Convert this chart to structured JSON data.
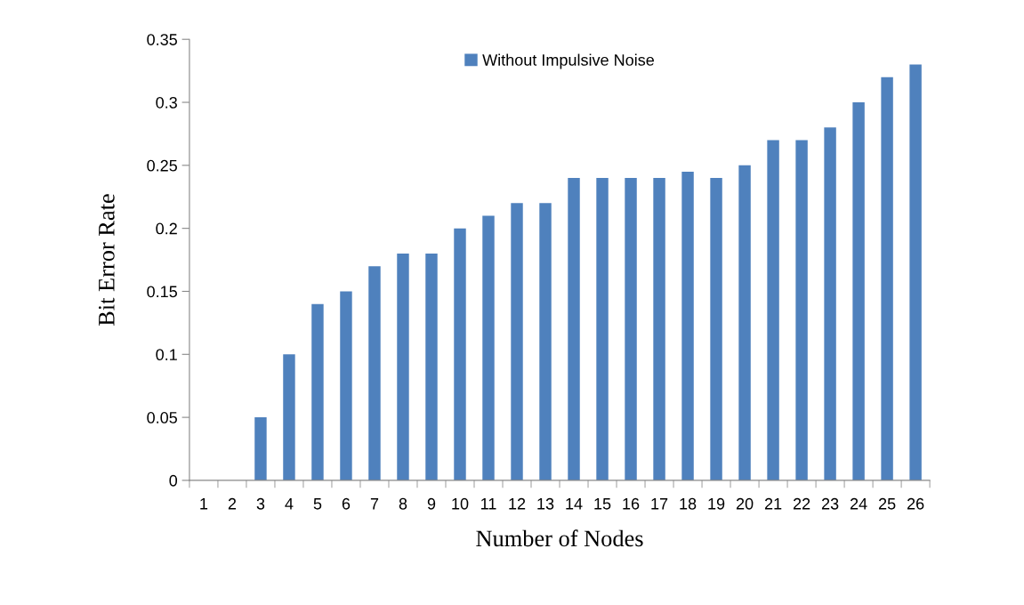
{
  "chart_data": {
    "type": "bar",
    "xlabel": "Number of Nodes",
    "ylabel": "Bit Error Rate",
    "categories": [
      "1",
      "2",
      "3",
      "4",
      "5",
      "6",
      "7",
      "8",
      "9",
      "10",
      "11",
      "12",
      "13",
      "14",
      "15",
      "16",
      "17",
      "18",
      "19",
      "20",
      "21",
      "22",
      "23",
      "24",
      "25",
      "26"
    ],
    "series": [
      {
        "name": "Without Impulsive Noise",
        "color": "#4f81bd",
        "values": [
          0,
          0,
          0.05,
          0.1,
          0.14,
          0.15,
          0.17,
          0.18,
          0.18,
          0.2,
          0.21,
          0.22,
          0.22,
          0.24,
          0.24,
          0.24,
          0.24,
          0.245,
          0.24,
          0.25,
          0.27,
          0.27,
          0.28,
          0.3,
          0.32,
          0.33
        ]
      }
    ],
    "ylim": [
      0,
      0.35
    ],
    "yticks": [
      0,
      0.05,
      0.1,
      0.15,
      0.2,
      0.25,
      0.3,
      0.35
    ],
    "grid": false,
    "legend": "top"
  }
}
